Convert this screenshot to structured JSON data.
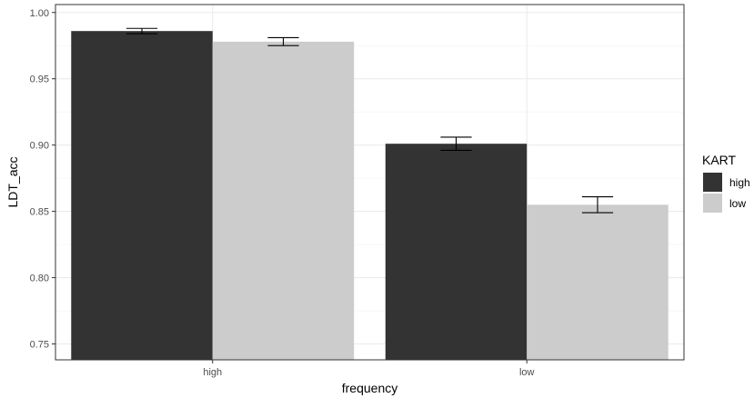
{
  "chart_data": {
    "type": "bar",
    "categories": [
      "high",
      "low"
    ],
    "series": [
      {
        "name": "high",
        "color": "#333333",
        "values": [
          0.986,
          0.901
        ],
        "errors": [
          0.002,
          0.005
        ]
      },
      {
        "name": "low",
        "color": "#cccccc",
        "values": [
          0.978,
          0.855
        ],
        "errors": [
          0.003,
          0.006
        ]
      }
    ],
    "xlabel": "frequency",
    "ylabel": "LDT_acc",
    "ylim": [
      0.738,
      1.006
    ],
    "yticks": [
      0.75,
      0.8,
      0.85,
      0.9,
      0.95,
      1.0
    ],
    "ytick_labels": [
      "0.75",
      "0.80",
      "0.85",
      "0.90",
      "0.95",
      "1.00"
    ],
    "legend": {
      "title": "KART",
      "position": "right"
    },
    "grid": true,
    "theme": "bw"
  }
}
